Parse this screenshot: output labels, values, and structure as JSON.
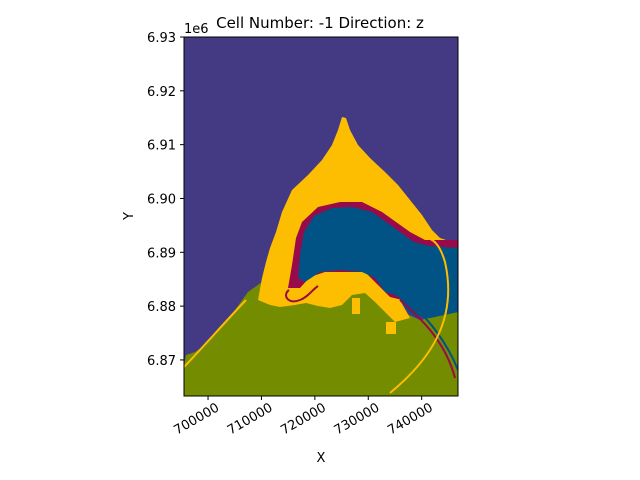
{
  "chart_data": {
    "type": "heatmap",
    "title": "Cell Number: -1 Direction: z",
    "xlabel": "X",
    "ylabel": "Y",
    "y_offset_text": "1e6",
    "xlim": [
      695500,
      746800
    ],
    "ylim": [
      6.8633,
      6.93
    ],
    "x_ticks": [
      700000,
      710000,
      720000,
      730000,
      740000
    ],
    "x_tick_labels": [
      "700000",
      "710000",
      "720000",
      "730000",
      "740000"
    ],
    "y_ticks": [
      6.87,
      6.88,
      6.89,
      6.9,
      6.91,
      6.92,
      6.93
    ],
    "y_tick_labels": [
      "6.87",
      "6.88",
      "6.89",
      "6.90",
      "6.91",
      "6.92",
      "6.93"
    ],
    "grid": false,
    "colors": {
      "top_unit": "#433a83",
      "yellow_unit": "#fdbd00",
      "crimson_unit": "#990a4a",
      "blue_unit": "#005384",
      "olive_unit": "#738c00"
    }
  }
}
